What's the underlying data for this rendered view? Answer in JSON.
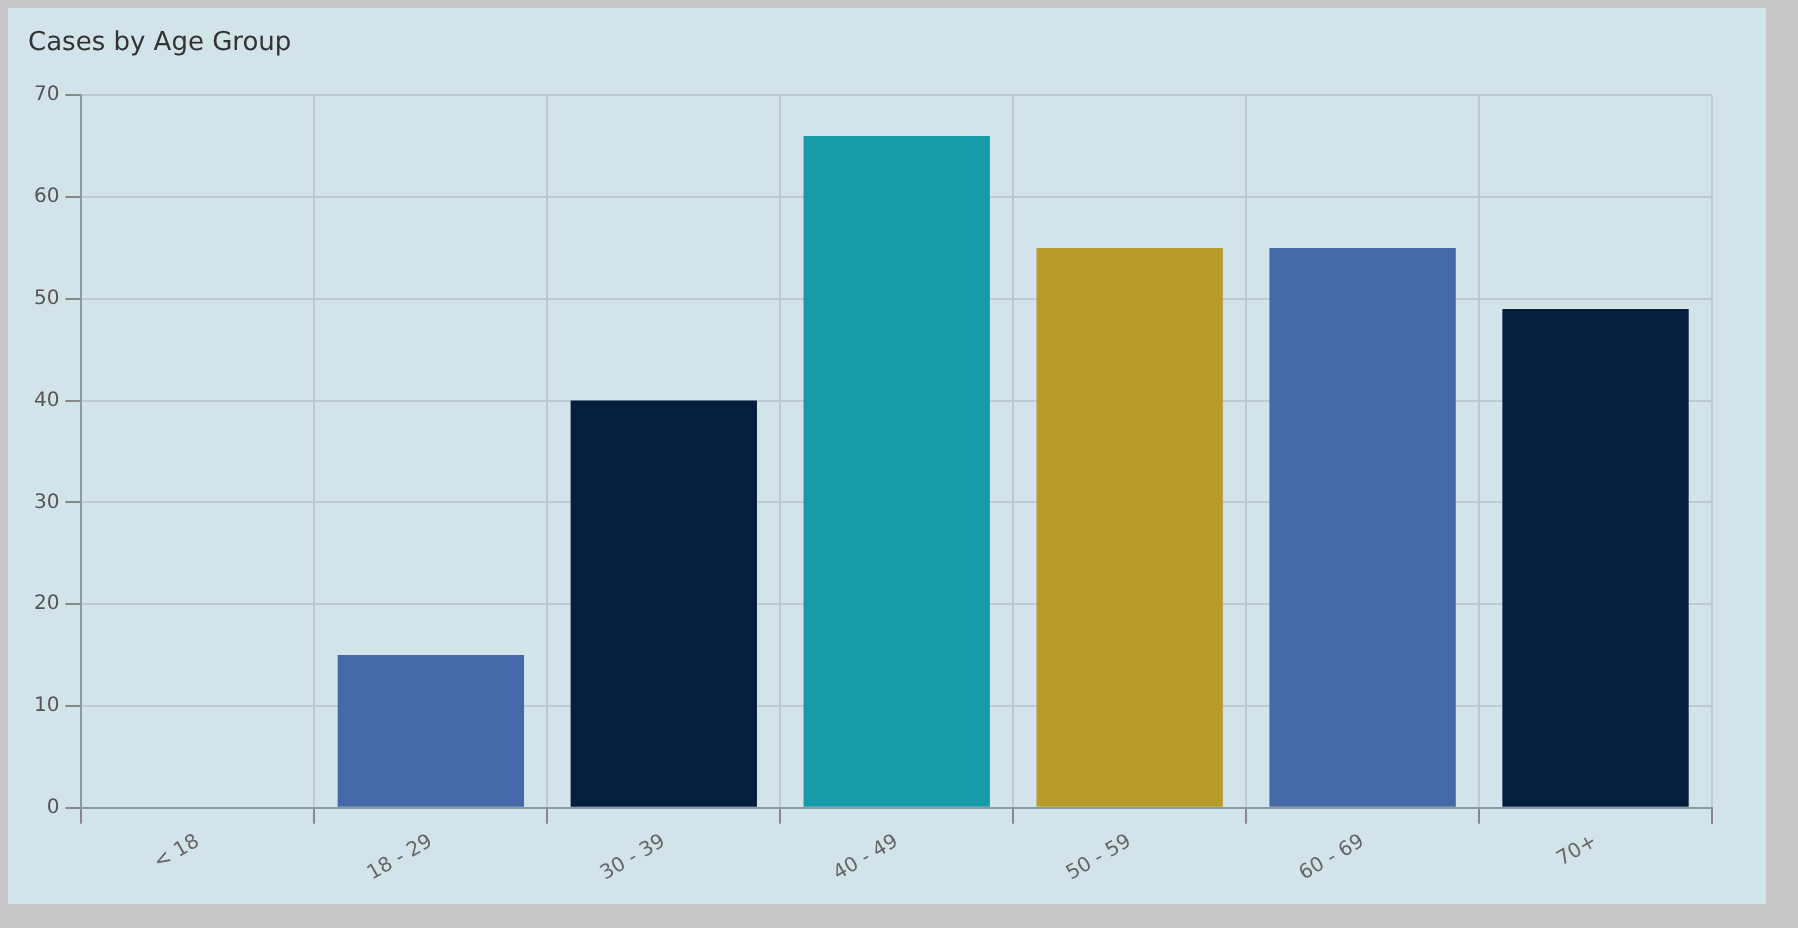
{
  "chart_data": {
    "type": "bar",
    "title": "Cases by Age Group",
    "categories": [
      "< 18",
      "18 - 29",
      "30 - 39",
      "40 - 49",
      "50 - 59",
      "60 - 69",
      "70+"
    ],
    "values": [
      0,
      15,
      40,
      66,
      55,
      55,
      49
    ],
    "colors": [
      "#b89b2a",
      "#436aa7",
      "#051e3c",
      "#179aa8",
      "#b89b2a",
      "#436aa7",
      "#051e3c"
    ],
    "ylim": [
      0,
      70
    ],
    "yticks": [
      0,
      10,
      20,
      30,
      40,
      50,
      60,
      70
    ],
    "grid": true,
    "legend": false
  }
}
